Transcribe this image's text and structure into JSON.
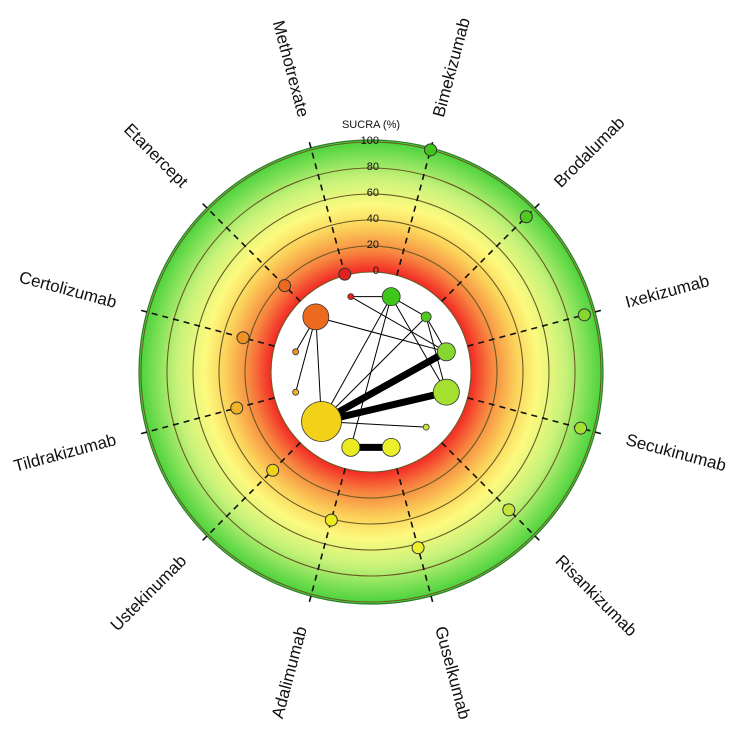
{
  "chart_data": {
    "type": "radial-sucra-network",
    "axis_title": "SUCRA (%)",
    "ticks": [
      "0",
      "20",
      "40",
      "60",
      "80",
      "100"
    ],
    "rlim": [
      0,
      100
    ],
    "grid": true,
    "treatments": [
      {
        "name": "Bimekizumab",
        "sucra": 100,
        "color": "#40c51a",
        "node_size": "medium"
      },
      {
        "name": "Brodalumab",
        "sucra": 92,
        "color": "#52c823",
        "node_size": "small"
      },
      {
        "name": "Ixekizumab",
        "sucra": 93,
        "color": "#86d830",
        "node_size": "medium"
      },
      {
        "name": "Secukinumab",
        "sucra": 90,
        "color": "#a3e030",
        "node_size": "large"
      },
      {
        "name": "Risankizumab",
        "sucra": 73,
        "color": "#c4e53a",
        "node_size": "tiny"
      },
      {
        "name": "Guselkumab",
        "sucra": 63,
        "color": "#ecef2c",
        "node_size": "medium"
      },
      {
        "name": "Adalimumab",
        "sucra": 41,
        "color": "#eaea20",
        "node_size": "medium"
      },
      {
        "name": "Ustekinumab",
        "sucra": 30,
        "color": "#f1d219",
        "node_size": "xlarge"
      },
      {
        "name": "Tildrakizumab",
        "sucra": 30,
        "color": "#f3b224",
        "node_size": "tiny"
      },
      {
        "name": "Certolizumab",
        "sucra": 25,
        "color": "#f39222",
        "node_size": "tiny"
      },
      {
        "name": "Etanercept",
        "sucra": 17,
        "color": "#ec6a1e",
        "node_size": "large"
      },
      {
        "name": "Methotrexate",
        "sucra": 1,
        "color": "#e0221c",
        "node_size": "tiny"
      }
    ],
    "network_edges": [
      {
        "from": "Ustekinumab",
        "to": "Ixekizumab",
        "weight": "heavy"
      },
      {
        "from": "Ustekinumab",
        "to": "Secukinumab",
        "weight": "heavy"
      },
      {
        "from": "Adalimumab",
        "to": "Guselkumab",
        "weight": "heavy"
      },
      {
        "from": "Ustekinumab",
        "to": "Bimekizumab",
        "weight": "thin"
      },
      {
        "from": "Ustekinumab",
        "to": "Brodalumab",
        "weight": "thin"
      },
      {
        "from": "Ustekinumab",
        "to": "Etanercept",
        "weight": "thin"
      },
      {
        "from": "Ustekinumab",
        "to": "Risankizumab",
        "weight": "thin"
      },
      {
        "from": "Etanercept",
        "to": "Ixekizumab",
        "weight": "thin"
      },
      {
        "from": "Etanercept",
        "to": "Certolizumab",
        "weight": "thin"
      },
      {
        "from": "Etanercept",
        "to": "Tildrakizumab",
        "weight": "thin"
      },
      {
        "from": "Bimekizumab",
        "to": "Brodalumab",
        "weight": "thin"
      },
      {
        "from": "Bimekizumab",
        "to": "Adalimumab",
        "weight": "thin"
      },
      {
        "from": "Bimekizumab",
        "to": "Secukinumab",
        "weight": "thin"
      },
      {
        "from": "Brodalumab",
        "to": "Ixekizumab",
        "weight": "thin"
      },
      {
        "from": "Brodalumab",
        "to": "Secukinumab",
        "weight": "thin"
      },
      {
        "from": "Methotrexate",
        "to": "Ixekizumab",
        "weight": "thin"
      },
      {
        "from": "Methotrexate",
        "to": "Bimekizumab",
        "weight": "thin"
      }
    ]
  }
}
